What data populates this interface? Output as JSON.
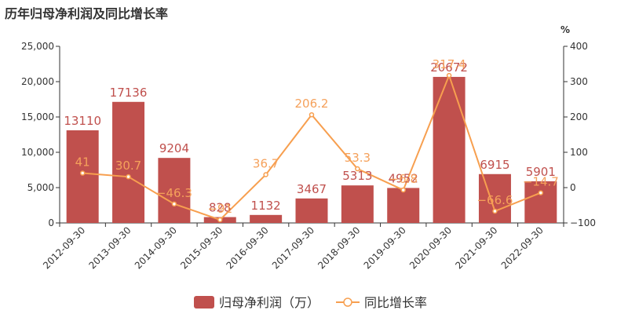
{
  "chart_data": {
    "type": "bar",
    "title": "历年归母净利润及同比增长率",
    "categories": [
      "2012-09-30",
      "2013-09-30",
      "2014-09-30",
      "2015-09-30",
      "2016-09-30",
      "2017-09-30",
      "2018-09-30",
      "2019-09-30",
      "2020-09-30",
      "2021-09-30",
      "2022-09-30"
    ],
    "series": [
      {
        "name": "归母净利润（万）",
        "type": "bar",
        "axis": "left",
        "values": [
          13110,
          17136,
          9204,
          828,
          1132,
          3467,
          5313,
          4952,
          20672,
          6915,
          5901
        ],
        "labels": [
          "13110",
          "17136",
          "9204",
          "828",
          "1132",
          "3467",
          "5313",
          "4952",
          "20672",
          "6915",
          "5901"
        ]
      },
      {
        "name": "同比增长率",
        "type": "line",
        "axis": "right",
        "values": [
          41,
          30.7,
          -46.3,
          -91,
          36.7,
          206.2,
          53.3,
          -6.8,
          317.4,
          -66.6,
          -14.7
        ],
        "labels": [
          "41",
          "30.7",
          "−46.3",
          "−91",
          "36.7",
          "206.2",
          "53.3",
          "−6.8",
          "317.4",
          "−66.6",
          "−14.7"
        ]
      }
    ],
    "y_left": {
      "range": [
        0,
        25000
      ],
      "ticks": [
        0,
        5000,
        10000,
        15000,
        20000,
        25000
      ],
      "tick_labels": [
        "0",
        "5,000",
        "10,000",
        "15,000",
        "20,000",
        "25,000"
      ]
    },
    "y_right": {
      "range": [
        -100,
        400
      ],
      "ticks": [
        -100,
        0,
        100,
        200,
        300,
        400
      ],
      "tick_labels": [
        "−100",
        "0",
        "100",
        "200",
        "300",
        "400"
      ],
      "unit": "%"
    },
    "grid": false,
    "legend_position": "bottom",
    "colors": {
      "bar": "#c0504d",
      "line": "#f79f4f",
      "bar_label": "#c0504d",
      "line_label": "#f5a15b"
    }
  }
}
